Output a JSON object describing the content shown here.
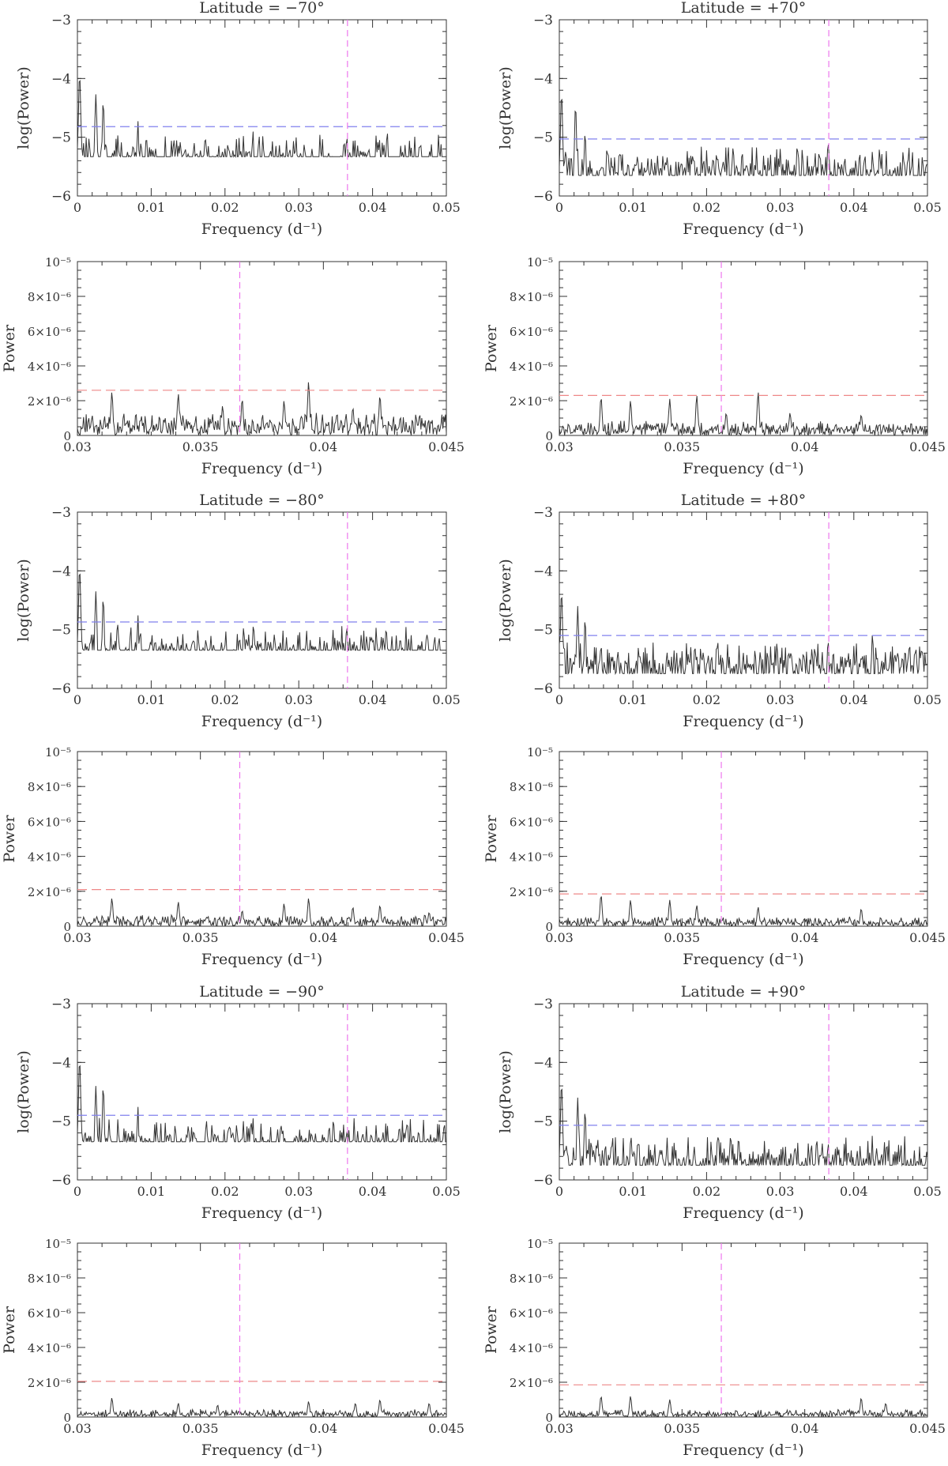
{
  "figure": {
    "line_color": "#333333",
    "threshold_log_color": "#8080ee",
    "threshold_lin_color": "#ee8888",
    "frequency_marker_color": "#ee77ee"
  },
  "chart_data": [
    {
      "type": "line",
      "scale": "log",
      "title": "Latitude = −70°",
      "xlabel": "Frequency (d⁻¹)",
      "ylabel": "log(Power)",
      "xlim": [
        0,
        0.05
      ],
      "ylim": [
        -6,
        -3
      ],
      "x_ticks": [
        "0",
        "0.01",
        "0.02",
        "0.03",
        "0.04",
        "0.05"
      ],
      "y_ticks": [
        "−6",
        "−5",
        "−4",
        "−3"
      ],
      "threshold": -4.82,
      "marker_frequency": 0.0366,
      "peaks": [
        [
          0.0003,
          -3.93
        ],
        [
          0.0025,
          -4.27
        ],
        [
          0.0035,
          -4.38
        ],
        [
          0.0082,
          -4.72
        ],
        [
          0.0055,
          -4.95
        ],
        [
          0.0225,
          -4.98
        ],
        [
          0.0238,
          -4.9
        ],
        [
          0.0365,
          -4.95
        ],
        [
          0.0405,
          -4.97
        ],
        [
          0.042,
          -4.92
        ]
      ],
      "noise": {
        "base": -5.6,
        "spread": 0.55,
        "seed": 11
      }
    },
    {
      "type": "line",
      "scale": "log",
      "title": "Latitude = +70°",
      "xlabel": "Frequency (d⁻¹)",
      "ylabel": "log(Power)",
      "xlim": [
        0,
        0.05
      ],
      "ylim": [
        -6,
        -3
      ],
      "x_ticks": [
        "0",
        "0.01",
        "0.02",
        "0.03",
        "0.04",
        "0.05"
      ],
      "y_ticks": [
        "−6",
        "−5",
        "−4",
        "−3"
      ],
      "threshold": -5.03,
      "marker_frequency": 0.0366,
      "peaks": [
        [
          0.0003,
          -4.25
        ],
        [
          0.0022,
          -4.45
        ],
        [
          0.0035,
          -4.9
        ],
        [
          0.0065,
          -5.2
        ],
        [
          0.0215,
          -5.3
        ],
        [
          0.0365,
          -5.05
        ],
        [
          0.0425,
          -5.25
        ]
      ],
      "noise": {
        "base": -5.75,
        "spread": 0.5,
        "seed": 23
      }
    },
    {
      "type": "line",
      "scale": "linear",
      "title": "",
      "xlabel": "Frequency (d⁻¹)",
      "ylabel": "Power",
      "xlim": [
        0.03,
        0.045
      ],
      "ylim": [
        0,
        1e-05
      ],
      "x_ticks": [
        "0.03",
        "0.035",
        "0.04",
        "0.045"
      ],
      "y_ticks": [
        "0",
        "2×10⁻⁶",
        "4×10⁻⁶",
        "6×10⁻⁶",
        "8×10⁻⁶",
        "10⁻⁵"
      ],
      "threshold": 2.6e-06,
      "marker_frequency": 0.0366,
      "peaks": [
        [
          0.0314,
          2.5e-06
        ],
        [
          0.0341,
          2.4e-06
        ],
        [
          0.0359,
          1.7e-06
        ],
        [
          0.0367,
          2.1e-06
        ],
        [
          0.0384,
          2e-06
        ],
        [
          0.0394,
          3.1e-06
        ],
        [
          0.0412,
          1.6e-06
        ],
        [
          0.0423,
          2.3e-06
        ]
      ],
      "noise": {
        "base": 0,
        "spread": 1.2e-06,
        "seed": 5
      }
    },
    {
      "type": "line",
      "scale": "linear",
      "title": "",
      "xlabel": "Frequency (d⁻¹)",
      "ylabel": "Power",
      "xlim": [
        0.03,
        0.045
      ],
      "ylim": [
        0,
        1e-05
      ],
      "x_ticks": [
        "0.03",
        "0.035",
        "0.04",
        "0.045"
      ],
      "y_ticks": [
        "0",
        "2×10⁻⁶",
        "4×10⁻⁶",
        "6×10⁻⁶",
        "8×10⁻⁶",
        "10⁻⁵"
      ],
      "threshold": 2.3e-06,
      "marker_frequency": 0.0366,
      "peaks": [
        [
          0.0317,
          2.2e-06
        ],
        [
          0.0329,
          2e-06
        ],
        [
          0.0345,
          2.1e-06
        ],
        [
          0.0356,
          2.3e-06
        ],
        [
          0.0368,
          1.3e-06
        ],
        [
          0.0381,
          2.5e-06
        ],
        [
          0.0394,
          1.3e-06
        ],
        [
          0.0423,
          1.2e-06
        ]
      ],
      "noise": {
        "base": 0,
        "spread": 8e-07,
        "seed": 9
      }
    },
    {
      "type": "line",
      "scale": "log",
      "title": "Latitude = −80°",
      "xlabel": "Frequency (d⁻¹)",
      "ylabel": "log(Power)",
      "xlim": [
        0,
        0.05
      ],
      "ylim": [
        -6,
        -3
      ],
      "x_ticks": [
        "0",
        "0.01",
        "0.02",
        "0.03",
        "0.04",
        "0.05"
      ],
      "y_ticks": [
        "−6",
        "−5",
        "−4",
        "−3"
      ],
      "threshold": -4.87,
      "marker_frequency": 0.0366,
      "peaks": [
        [
          0.0003,
          -3.95
        ],
        [
          0.0025,
          -4.35
        ],
        [
          0.0035,
          -4.45
        ],
        [
          0.0082,
          -4.75
        ],
        [
          0.0055,
          -4.9
        ],
        [
          0.0225,
          -4.98
        ],
        [
          0.0238,
          -4.95
        ],
        [
          0.0365,
          -4.9
        ],
        [
          0.0405,
          -4.95
        ]
      ],
      "noise": {
        "base": -5.6,
        "spread": 0.55,
        "seed": 31
      }
    },
    {
      "type": "line",
      "scale": "log",
      "title": "Latitude = +80°",
      "xlabel": "Frequency (d⁻¹)",
      "ylabel": "log(Power)",
      "xlim": [
        0,
        0.05
      ],
      "ylim": [
        -6,
        -3
      ],
      "x_ticks": [
        "0",
        "0.01",
        "0.02",
        "0.03",
        "0.04",
        "0.05"
      ],
      "y_ticks": [
        "−6",
        "−5",
        "−4",
        "−3"
      ],
      "threshold": -5.1,
      "marker_frequency": 0.0366,
      "peaks": [
        [
          0.0003,
          -4.35
        ],
        [
          0.0025,
          -4.6
        ],
        [
          0.0035,
          -4.8
        ],
        [
          0.0215,
          -5.15
        ],
        [
          0.0365,
          -5.15
        ],
        [
          0.0425,
          -5.1
        ]
      ],
      "noise": {
        "base": -5.8,
        "spread": 0.5,
        "seed": 37
      }
    },
    {
      "type": "line",
      "scale": "linear",
      "title": "",
      "xlabel": "Frequency (d⁻¹)",
      "ylabel": "Power",
      "xlim": [
        0.03,
        0.045
      ],
      "ylim": [
        0,
        1e-05
      ],
      "x_ticks": [
        "0.03",
        "0.035",
        "0.04",
        "0.045"
      ],
      "y_ticks": [
        "0",
        "2×10⁻⁶",
        "4×10⁻⁶",
        "6×10⁻⁶",
        "8×10⁻⁶",
        "10⁻⁵"
      ],
      "threshold": 2.1e-06,
      "marker_frequency": 0.0366,
      "peaks": [
        [
          0.0314,
          1.6e-06
        ],
        [
          0.0341,
          1.4e-06
        ],
        [
          0.0367,
          9e-07
        ],
        [
          0.0384,
          1.3e-06
        ],
        [
          0.0394,
          1.6e-06
        ],
        [
          0.0412,
          1.1e-06
        ],
        [
          0.0423,
          1.2e-06
        ],
        [
          0.0443,
          8e-07
        ]
      ],
      "noise": {
        "base": 0,
        "spread": 6e-07,
        "seed": 41
      }
    },
    {
      "type": "line",
      "scale": "linear",
      "title": "",
      "xlabel": "Frequency (d⁻¹)",
      "ylabel": "Power",
      "xlim": [
        0.03,
        0.045
      ],
      "ylim": [
        0,
        1e-05
      ],
      "x_ticks": [
        "0.03",
        "0.035",
        "0.04",
        "0.045"
      ],
      "y_ticks": [
        "0",
        "2×10⁻⁶",
        "4×10⁻⁶",
        "6×10⁻⁶",
        "8×10⁻⁶",
        "10⁻⁵"
      ],
      "threshold": 1.85e-06,
      "marker_frequency": 0.0366,
      "peaks": [
        [
          0.0317,
          1.8e-06
        ],
        [
          0.0329,
          1.5e-06
        ],
        [
          0.0345,
          1.5e-06
        ],
        [
          0.0356,
          1.2e-06
        ],
        [
          0.0381,
          1.1e-06
        ],
        [
          0.0423,
          1e-06
        ]
      ],
      "noise": {
        "base": 0,
        "spread": 5e-07,
        "seed": 43
      }
    },
    {
      "type": "line",
      "scale": "log",
      "title": "Latitude = −90°",
      "xlabel": "Frequency (d⁻¹)",
      "ylabel": "log(Power)",
      "xlim": [
        0,
        0.05
      ],
      "ylim": [
        -6,
        -3
      ],
      "x_ticks": [
        "0",
        "0.01",
        "0.02",
        "0.03",
        "0.04",
        "0.05"
      ],
      "y_ticks": [
        "−6",
        "−5",
        "−4",
        "−3"
      ],
      "threshold": -4.9,
      "marker_frequency": 0.0366,
      "peaks": [
        [
          0.0003,
          -3.95
        ],
        [
          0.0025,
          -4.4
        ],
        [
          0.0035,
          -4.4
        ],
        [
          0.0082,
          -4.75
        ],
        [
          0.0055,
          -4.95
        ],
        [
          0.0225,
          -5.0
        ],
        [
          0.0238,
          -4.95
        ],
        [
          0.0365,
          -5.1
        ],
        [
          0.0405,
          -5.05
        ]
      ],
      "noise": {
        "base": -5.6,
        "spread": 0.55,
        "seed": 53
      }
    },
    {
      "type": "line",
      "scale": "log",
      "title": "Latitude = +90°",
      "xlabel": "Frequency (d⁻¹)",
      "ylabel": "log(Power)",
      "xlim": [
        0,
        0.05
      ],
      "ylim": [
        -6,
        -3
      ],
      "x_ticks": [
        "0",
        "0.01",
        "0.02",
        "0.03",
        "0.04",
        "0.05"
      ],
      "y_ticks": [
        "−6",
        "−5",
        "−4",
        "−3"
      ],
      "threshold": -5.07,
      "marker_frequency": 0.0366,
      "peaks": [
        [
          0.0003,
          -4.35
        ],
        [
          0.0025,
          -4.6
        ],
        [
          0.0035,
          -4.8
        ],
        [
          0.0215,
          -5.2
        ],
        [
          0.0365,
          -5.35
        ],
        [
          0.0425,
          -5.25
        ]
      ],
      "noise": {
        "base": -5.85,
        "spread": 0.5,
        "seed": 61
      }
    },
    {
      "type": "line",
      "scale": "linear",
      "title": "",
      "xlabel": "Frequency (d⁻¹)",
      "ylabel": "Power",
      "xlim": [
        0.03,
        0.045
      ],
      "ylim": [
        0,
        1e-05
      ],
      "x_ticks": [
        "0.03",
        "0.035",
        "0.04",
        "0.045"
      ],
      "y_ticks": [
        "0",
        "2×10⁻⁶",
        "4×10⁻⁶",
        "6×10⁻⁶",
        "8×10⁻⁶",
        "10⁻⁵"
      ],
      "threshold": 2.05e-06,
      "marker_frequency": 0.0366,
      "peaks": [
        [
          0.0314,
          1.1e-06
        ],
        [
          0.0341,
          8e-07
        ],
        [
          0.0357,
          7e-07
        ],
        [
          0.0394,
          9e-07
        ],
        [
          0.0413,
          8e-07
        ],
        [
          0.0423,
          1e-06
        ],
        [
          0.0443,
          8e-07
        ]
      ],
      "noise": {
        "base": 0,
        "spread": 4e-07,
        "seed": 71
      }
    },
    {
      "type": "line",
      "scale": "linear",
      "title": "",
      "xlabel": "Frequency (d⁻¹)",
      "ylabel": "Power",
      "xlim": [
        0.03,
        0.045
      ],
      "ylim": [
        0,
        1e-05
      ],
      "x_ticks": [
        "0.03",
        "0.035",
        "0.04",
        "0.045"
      ],
      "y_ticks": [
        "0",
        "2×10⁻⁶",
        "4×10⁻⁶",
        "6×10⁻⁶",
        "8×10⁻⁶",
        "10⁻⁵"
      ],
      "threshold": 1.85e-06,
      "marker_frequency": 0.0366,
      "peaks": [
        [
          0.0317,
          1.2e-06
        ],
        [
          0.0329,
          1.2e-06
        ],
        [
          0.0345,
          1e-06
        ],
        [
          0.0423,
          1.1e-06
        ],
        [
          0.0433,
          8e-07
        ]
      ],
      "noise": {
        "base": 0,
        "spread": 4e-07,
        "seed": 79
      }
    }
  ]
}
